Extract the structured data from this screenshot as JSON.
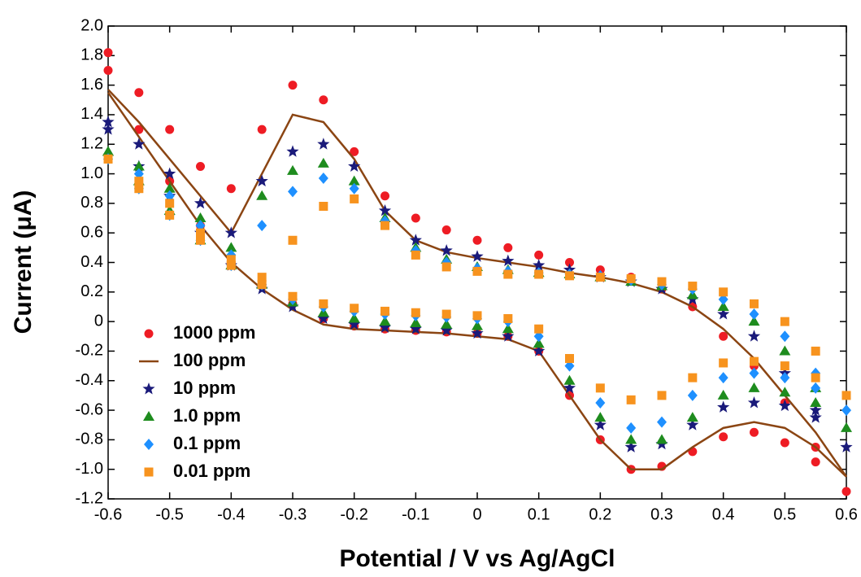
{
  "chart_data": {
    "type": "scatter",
    "xlabel": "Potential / V vs Ag/AgCl",
    "ylabel": "Current (μA)",
    "xlim": [
      -0.6,
      0.6
    ],
    "ylim": [
      -1.2,
      2.0
    ],
    "xticks": [
      -0.6,
      -0.5,
      -0.4,
      -0.3,
      -0.2,
      -0.1,
      0,
      0.1,
      0.2,
      0.3,
      0.4,
      0.5,
      0.6
    ],
    "yticks": [
      {
        "value": 2,
        "label": "2.0"
      },
      1.8,
      1.6,
      1.4,
      1.2,
      {
        "value": 1,
        "label": "1.0"
      },
      0.8,
      0.6,
      0.4,
      0.2,
      0,
      -0.2,
      -0.4,
      -0.6,
      -0.8,
      {
        "value": -1,
        "label": "-1.0"
      },
      -1.2
    ],
    "legend": "lower left",
    "x": [
      -0.6,
      -0.55,
      -0.5,
      -0.45,
      -0.4,
      -0.35,
      -0.3,
      -0.25,
      -0.2,
      -0.15,
      -0.1,
      -0.05,
      0,
      0.05,
      0.1,
      0.15,
      0.2,
      0.25,
      0.3,
      0.35,
      0.4,
      0.45,
      0.5,
      0.55,
      0.6,
      0.55,
      0.5,
      0.45,
      0.4,
      0.35,
      0.3,
      0.25,
      0.2,
      0.15,
      0.1,
      0.05,
      0,
      -0.05,
      -0.1,
      -0.15,
      -0.2,
      -0.25,
      -0.3,
      -0.35,
      -0.4,
      -0.45,
      -0.5,
      -0.55,
      -0.6
    ],
    "series": [
      {
        "name": "1000 ppm",
        "color": "#ee1c24",
        "marker": "circle",
        "values": [
          1.82,
          1.55,
          1.3,
          1.05,
          0.9,
          1.3,
          1.6,
          1.5,
          1.15,
          0.85,
          0.7,
          0.62,
          0.55,
          0.5,
          0.45,
          0.4,
          0.35,
          0.3,
          0.22,
          0.1,
          -0.1,
          -0.3,
          -0.55,
          -0.85,
          -1.15,
          -0.95,
          -0.82,
          -0.75,
          -0.78,
          -0.88,
          -0.98,
          -1.0,
          -0.8,
          -0.5,
          -0.2,
          -0.1,
          -0.08,
          -0.07,
          -0.06,
          -0.05,
          -0.03,
          0.02,
          0.12,
          0.25,
          0.4,
          0.65,
          0.95,
          1.3,
          1.7
        ]
      },
      {
        "name": "100 ppm",
        "color": "#8b4513",
        "marker": "line",
        "values": [
          1.57,
          1.35,
          1.1,
          0.85,
          0.6,
          1.0,
          1.4,
          1.35,
          1.1,
          0.75,
          0.55,
          0.47,
          0.43,
          0.4,
          0.37,
          0.33,
          0.3,
          0.26,
          0.2,
          0.1,
          -0.05,
          -0.25,
          -0.5,
          -0.75,
          -1.05,
          -0.85,
          -0.72,
          -0.68,
          -0.72,
          -0.85,
          -1.0,
          -1.0,
          -0.8,
          -0.5,
          -0.2,
          -0.12,
          -0.1,
          -0.08,
          -0.07,
          -0.06,
          -0.05,
          -0.02,
          0.08,
          0.22,
          0.4,
          0.65,
          0.95,
          1.25,
          1.55
        ]
      },
      {
        "name": "10 ppm",
        "color": "#1a1a7a",
        "marker": "star",
        "values": [
          1.35,
          1.2,
          1.0,
          0.8,
          0.6,
          0.95,
          1.15,
          1.2,
          1.05,
          0.75,
          0.55,
          0.48,
          0.44,
          0.41,
          0.38,
          0.35,
          0.3,
          0.27,
          0.22,
          0.15,
          0.05,
          -0.1,
          -0.35,
          -0.6,
          -0.85,
          -0.65,
          -0.57,
          -0.55,
          -0.58,
          -0.7,
          -0.83,
          -0.85,
          -0.7,
          -0.45,
          -0.2,
          -0.1,
          -0.08,
          -0.06,
          -0.05,
          -0.04,
          -0.02,
          0.02,
          0.1,
          0.22,
          0.38,
          0.6,
          0.85,
          1.05,
          1.3
        ]
      },
      {
        "name": "1.0 ppm",
        "color": "#1e8c1e",
        "marker": "triangle",
        "values": [
          1.15,
          1.05,
          0.9,
          0.7,
          0.5,
          0.85,
          1.02,
          1.07,
          0.95,
          0.7,
          0.5,
          0.42,
          0.37,
          0.35,
          0.33,
          0.32,
          0.3,
          0.27,
          0.24,
          0.18,
          0.1,
          0,
          -0.2,
          -0.45,
          -0.72,
          -0.55,
          -0.48,
          -0.45,
          -0.5,
          -0.65,
          -0.8,
          -0.8,
          -0.65,
          -0.4,
          -0.15,
          -0.05,
          -0.03,
          -0.02,
          -0.01,
          0,
          0.02,
          0.06,
          0.13,
          0.25,
          0.38,
          0.55,
          0.75,
          0.95,
          1.15
        ]
      },
      {
        "name": "0.1 ppm",
        "color": "#1e90ff",
        "marker": "diamond",
        "values": [
          1.1,
          1.0,
          0.85,
          0.65,
          0.45,
          0.65,
          0.88,
          0.97,
          0.9,
          0.68,
          0.48,
          0.4,
          0.36,
          0.34,
          0.33,
          0.32,
          0.31,
          0.28,
          0.25,
          0.22,
          0.15,
          0.05,
          -0.1,
          -0.35,
          -0.6,
          -0.45,
          -0.38,
          -0.35,
          -0.38,
          -0.5,
          -0.68,
          -0.72,
          -0.55,
          -0.3,
          -0.1,
          0,
          0.02,
          0.03,
          0.04,
          0.05,
          0.07,
          0.1,
          0.15,
          0.25,
          0.38,
          0.55,
          0.72,
          0.9,
          1.1
        ]
      },
      {
        "name": "0.01 ppm",
        "color": "#f7931e",
        "marker": "square",
        "values": [
          1.1,
          0.95,
          0.8,
          0.6,
          0.42,
          0.3,
          0.55,
          0.78,
          0.83,
          0.65,
          0.45,
          0.37,
          0.34,
          0.32,
          0.32,
          0.31,
          0.3,
          0.29,
          0.27,
          0.24,
          0.2,
          0.12,
          0,
          -0.2,
          -0.5,
          -0.38,
          -0.3,
          -0.27,
          -0.28,
          -0.38,
          -0.5,
          -0.53,
          -0.45,
          -0.25,
          -0.05,
          0.02,
          0.04,
          0.05,
          0.06,
          0.07,
          0.09,
          0.12,
          0.17,
          0.25,
          0.38,
          0.55,
          0.72,
          0.9,
          1.1
        ]
      }
    ]
  }
}
